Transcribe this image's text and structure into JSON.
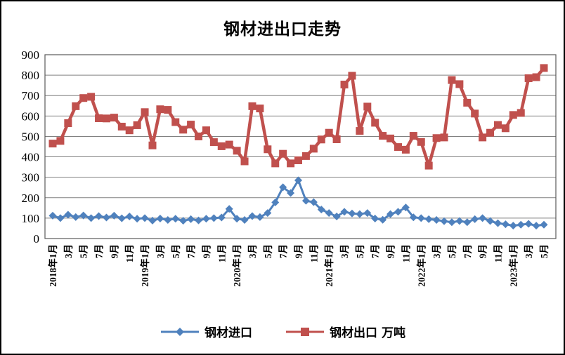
{
  "title": "钢材进出口走势",
  "legend": {
    "import_label": "钢材进口",
    "export_label": "钢材出口 万吨"
  },
  "colors": {
    "import_series": "#4F81BD",
    "export_series": "#C0504D",
    "gridline": "#808080",
    "plot_border": "#595959",
    "text": "#000000"
  },
  "chart_data": {
    "type": "line",
    "title": "钢材进出口走势",
    "unit": "万吨",
    "ylim": [
      0,
      900
    ],
    "ytick_step": 100,
    "grid": true,
    "legend_position": "bottom",
    "categories": [
      "2018年1月",
      "2018年2月",
      "2018年3月",
      "2018年4月",
      "2018年5月",
      "2018年6月",
      "2018年7月",
      "2018年8月",
      "2018年9月",
      "2018年10月",
      "2018年11月",
      "2018年12月",
      "2019年1月",
      "2019年2月",
      "2019年3月",
      "2019年4月",
      "2019年5月",
      "2019年6月",
      "2019年7月",
      "2019年8月",
      "2019年9月",
      "2019年10月",
      "2019年11月",
      "2019年12月",
      "2020年1月",
      "2020年2月",
      "2020年3月",
      "2020年4月",
      "2020年5月",
      "2020年6月",
      "2020年7月",
      "2020年8月",
      "2020年9月",
      "2020年10月",
      "2020年11月",
      "2020年12月",
      "2021年1月",
      "2021年2月",
      "2021年3月",
      "2021年4月",
      "2021年5月",
      "2021年6月",
      "2021年7月",
      "2021年8月",
      "2021年9月",
      "2021年10月",
      "2021年11月",
      "2021年12月",
      "2022年1月",
      "2022年2月",
      "2022年3月",
      "2022年4月",
      "2022年5月",
      "2022年6月",
      "2022年7月",
      "2022年8月",
      "2022年9月",
      "2022年10月",
      "2022年11月",
      "2022年12月",
      "2023年1月",
      "2023年2月",
      "2023年3月",
      "2023年4月",
      "2023年5月"
    ],
    "x_tick_labels": [
      "2018年1月",
      "3月",
      "5月",
      "7月",
      "9月",
      "11月",
      "2019年1月",
      "3月",
      "5月",
      "7月",
      "9月",
      "11月",
      "2020年1月",
      "3月",
      "5月",
      "7月",
      "9月",
      "11月",
      "2021年1月",
      "3月",
      "5月",
      "7月",
      "9月",
      "11月",
      "2022年1月",
      "3月",
      "5月",
      "7月",
      "9月",
      "11月",
      "2023年1月",
      "3月",
      "5月"
    ],
    "x_tick_every": 2,
    "series": [
      {
        "name": "钢材进口",
        "color": "#4F81BD",
        "marker": "diamond",
        "values": [
          112,
          100,
          117,
          105,
          113,
          100,
          110,
          103,
          112,
          99,
          108,
          97,
          100,
          88,
          98,
          91,
          97,
          87,
          95,
          89,
          97,
          100,
          103,
          145,
          97,
          91,
          110,
          105,
          125,
          177,
          251,
          223,
          285,
          185,
          178,
          142,
          125,
          108,
          131,
          123,
          120,
          125,
          98,
          92,
          120,
          131,
          152,
          104,
          100,
          95,
          91,
          85,
          80,
          86,
          80,
          95,
          100,
          86,
          75,
          70,
          63,
          68,
          72,
          63,
          68
        ]
      },
      {
        "name": "钢材出口 万吨",
        "color": "#C0504D",
        "marker": "square",
        "values": [
          465,
          478,
          565,
          648,
          688,
          694,
          589,
          588,
          592,
          548,
          530,
          555,
          619,
          456,
          633,
          630,
          570,
          533,
          558,
          500,
          530,
          472,
          452,
          460,
          430,
          378,
          648,
          637,
          437,
          368,
          415,
          368,
          383,
          404,
          440,
          485,
          518,
          486,
          754,
          797,
          527,
          646,
          567,
          503,
          490,
          448,
          435,
          503,
          473,
          357,
          492,
          495,
          776,
          756,
          665,
          612,
          495,
          518,
          556,
          540,
          605,
          615,
          785,
          790,
          835
        ]
      }
    ]
  }
}
